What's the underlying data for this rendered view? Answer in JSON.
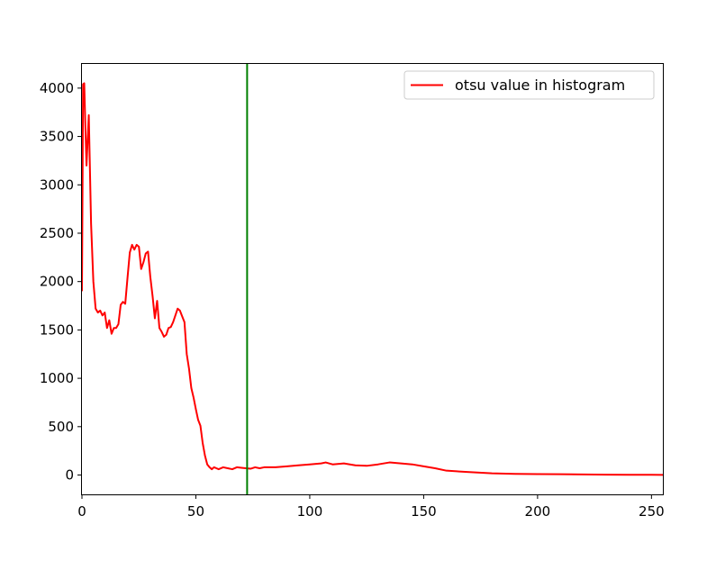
{
  "chart_data": {
    "type": "line",
    "title": "",
    "xlabel": "",
    "ylabel": "",
    "xlim": [
      0,
      255
    ],
    "ylim": [
      -200,
      4250
    ],
    "xticks": [
      0,
      50,
      100,
      150,
      200,
      250
    ],
    "yticks": [
      0,
      500,
      1000,
      1500,
      2000,
      2500,
      3000,
      3500,
      4000
    ],
    "grid": false,
    "legend_position": "top-right",
    "series": [
      {
        "name": "otsu value in histogram",
        "color": "#ff0000",
        "x": [
          0,
          0.5,
          1,
          1.5,
          2,
          3,
          4,
          5,
          6,
          7,
          8,
          9,
          10,
          11,
          12,
          13,
          14,
          15,
          16,
          17,
          18,
          19,
          20,
          21,
          22,
          23,
          24,
          25,
          26,
          27,
          28,
          29,
          30,
          31,
          32,
          33,
          34,
          35,
          36,
          37,
          38,
          39,
          40,
          41,
          42,
          43,
          44,
          45,
          46,
          47,
          48,
          49,
          50,
          51,
          52,
          53,
          54,
          55,
          56,
          57,
          58,
          59,
          60,
          62,
          64,
          66,
          68,
          70,
          72,
          74,
          76,
          78,
          80,
          85,
          90,
          95,
          100,
          105,
          107,
          110,
          115,
          120,
          125,
          130,
          135,
          140,
          145,
          150,
          155,
          160,
          170,
          180,
          190,
          200,
          210,
          220,
          230,
          240,
          250,
          255
        ],
        "y": [
          1900,
          4040,
          4050,
          3600,
          3200,
          3720,
          2600,
          2000,
          1720,
          1680,
          1700,
          1650,
          1680,
          1520,
          1600,
          1460,
          1520,
          1520,
          1560,
          1760,
          1790,
          1770,
          2040,
          2300,
          2380,
          2330,
          2380,
          2360,
          2130,
          2200,
          2290,
          2310,
          2050,
          1850,
          1620,
          1800,
          1520,
          1480,
          1430,
          1450,
          1520,
          1530,
          1580,
          1650,
          1720,
          1700,
          1640,
          1580,
          1250,
          1100,
          900,
          800,
          680,
          570,
          510,
          330,
          200,
          110,
          80,
          60,
          80,
          70,
          60,
          80,
          70,
          60,
          80,
          75,
          70,
          65,
          80,
          70,
          80,
          80,
          90,
          100,
          110,
          120,
          130,
          110,
          120,
          100,
          95,
          110,
          130,
          120,
          110,
          90,
          70,
          45,
          30,
          18,
          12,
          10,
          8,
          6,
          4,
          3,
          2,
          1
        ]
      }
    ],
    "vline": {
      "x": 72.5,
      "color": "#008000"
    }
  }
}
